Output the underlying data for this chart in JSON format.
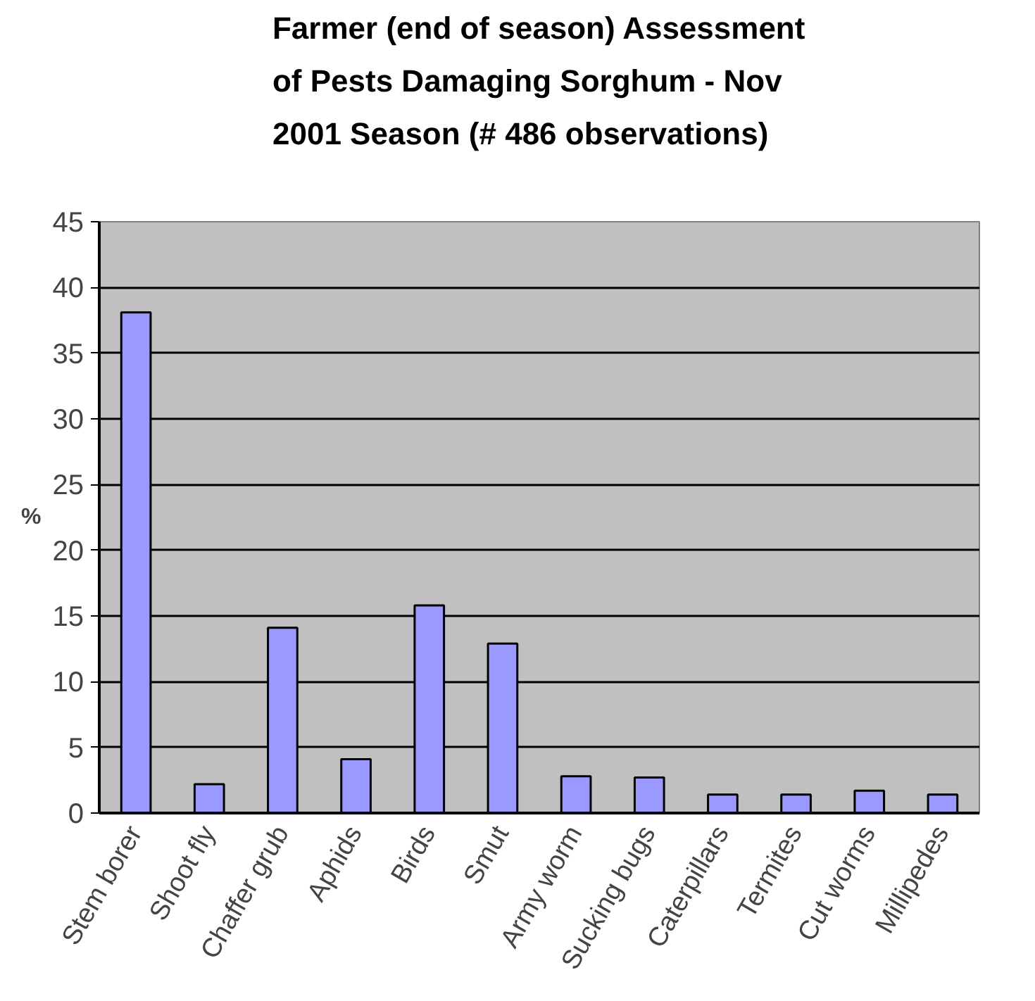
{
  "chart_data": {
    "type": "bar",
    "title": "Farmer (end of season) Assessment\nof Pests Damaging Sorghum - Nov\n2001 Season (# 486 observations)",
    "ylabel": "%",
    "categories": [
      "Stem borer",
      "Shoot fly",
      "Chaffer grub",
      "Aphids",
      "Birds",
      "Smut",
      "Army worm",
      "Sucking bugs",
      "Caterpillars",
      "Termites",
      "Cut worms",
      "Millipedes"
    ],
    "values": [
      38.1,
      2.2,
      14.1,
      4.1,
      15.8,
      12.9,
      2.8,
      2.7,
      1.4,
      1.4,
      1.7,
      1.4
    ],
    "color": "#9999ff",
    "ylim": [
      0,
      45
    ],
    "yticks": [
      0,
      5,
      10,
      15,
      20,
      25,
      30,
      35,
      40,
      45
    ],
    "grid": "y"
  }
}
